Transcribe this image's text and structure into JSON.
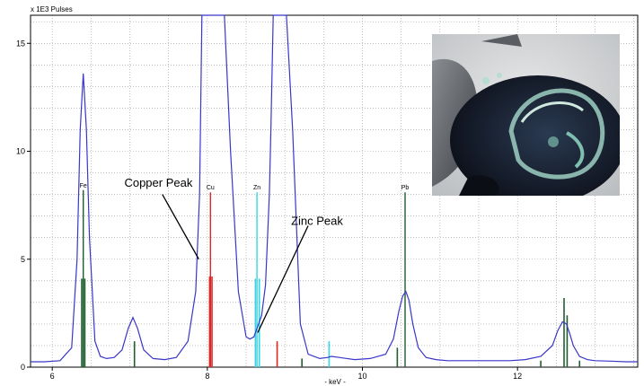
{
  "chart_data": {
    "type": "line",
    "ylabel": "x 1E3 Pulses",
    "xlabel": "- keV -",
    "xlim": [
      5.72,
      13.55
    ],
    "ylim": [
      0,
      16.3
    ],
    "x_ticks": [
      6,
      8,
      10,
      12
    ],
    "y_ticks": [
      0,
      5,
      10,
      15
    ],
    "series": [
      {
        "color": "#3a36c8",
        "x": [
          5.72,
          5.9,
          6.1,
          6.25,
          6.32,
          6.36,
          6.4,
          6.44,
          6.48,
          6.55,
          6.62,
          6.7,
          6.8,
          6.9,
          6.98,
          7.04,
          7.1,
          7.18,
          7.3,
          7.45,
          7.6,
          7.75,
          7.85,
          7.9,
          7.93,
          8.0,
          8.2,
          8.22,
          8.3,
          8.4,
          8.5,
          8.55,
          8.6,
          8.65,
          8.7,
          8.75,
          8.8,
          8.82,
          8.85,
          9.02,
          9.1,
          9.15,
          9.2,
          9.3,
          9.45,
          9.55,
          9.6,
          9.7,
          9.9,
          10.1,
          10.3,
          10.4,
          10.47,
          10.52,
          10.56,
          10.6,
          10.65,
          10.72,
          10.82,
          10.95,
          11.1,
          11.3,
          11.5,
          11.7,
          11.9,
          12.1,
          12.3,
          12.45,
          12.52,
          12.58,
          12.63,
          12.67,
          12.72,
          12.8,
          12.9,
          13.0,
          13.2,
          13.4,
          13.55
        ],
        "y": [
          0.25,
          0.25,
          0.3,
          0.9,
          5.0,
          11.0,
          13.6,
          11.0,
          6.0,
          1.2,
          0.5,
          0.4,
          0.45,
          0.8,
          1.8,
          2.3,
          1.8,
          0.8,
          0.4,
          0.35,
          0.45,
          1.2,
          3.5,
          8.0,
          16.3,
          16.3,
          16.3,
          16.3,
          10.0,
          3.5,
          1.4,
          1.3,
          1.4,
          1.9,
          2.4,
          3.8,
          8.0,
          11.0,
          16.3,
          16.3,
          11.0,
          6.5,
          2.0,
          0.6,
          0.4,
          0.45,
          0.5,
          0.45,
          0.35,
          0.4,
          0.6,
          1.3,
          2.6,
          3.3,
          3.5,
          3.1,
          2.0,
          0.9,
          0.45,
          0.35,
          0.3,
          0.3,
          0.3,
          0.3,
          0.3,
          0.35,
          0.5,
          1.0,
          1.7,
          2.1,
          2.0,
          1.6,
          1.0,
          0.5,
          0.35,
          0.3,
          0.28,
          0.25,
          0.25
        ]
      }
    ],
    "element_lines": [
      {
        "label": "Fe",
        "x": 6.4,
        "height": 8.2,
        "color": "#1f5e2e"
      },
      {
        "label": "Cu",
        "x": 8.04,
        "height": 8.1,
        "color": "#e02525"
      },
      {
        "label": "Zn",
        "x": 8.64,
        "height": 8.1,
        "color": "#35d6e6"
      },
      {
        "label": "Pb",
        "x": 10.55,
        "height": 8.1,
        "color": "#1f5e2e"
      }
    ],
    "minor_lines": [
      {
        "x": 6.38,
        "height": 4.1,
        "color": "#1f5e2e"
      },
      {
        "x": 6.42,
        "height": 4.1,
        "color": "#1f5e2e"
      },
      {
        "x": 7.06,
        "height": 1.2,
        "color": "#1f5e2e"
      },
      {
        "x": 8.03,
        "height": 4.2,
        "color": "#e02525"
      },
      {
        "x": 8.06,
        "height": 4.2,
        "color": "#e02525"
      },
      {
        "x": 8.62,
        "height": 4.1,
        "color": "#35d6e6"
      },
      {
        "x": 8.67,
        "height": 4.1,
        "color": "#35d6e6"
      },
      {
        "x": 8.9,
        "height": 1.2,
        "color": "#e02525"
      },
      {
        "x": 9.22,
        "height": 0.4,
        "color": "#1f5e2e"
      },
      {
        "x": 9.57,
        "height": 1.2,
        "color": "#35d6e6"
      },
      {
        "x": 10.45,
        "height": 0.9,
        "color": "#1f5e2e"
      },
      {
        "x": 12.3,
        "height": 0.3,
        "color": "#1f5e2e"
      },
      {
        "x": 12.6,
        "height": 3.2,
        "color": "#1f5e2e"
      },
      {
        "x": 12.64,
        "height": 2.4,
        "color": "#1f5e2e"
      },
      {
        "x": 12.8,
        "height": 0.3,
        "color": "#1f5e2e"
      }
    ],
    "annotations": [
      {
        "text": "Copper Peak",
        "x": 6.93,
        "y": 8.35,
        "arrow_from": [
          7.42,
          8.0
        ],
        "arrow_to": [
          7.89,
          5.0
        ]
      },
      {
        "text": "Zinc Peak",
        "x": 9.08,
        "y": 6.6,
        "arrow_from": [
          9.3,
          6.55
        ],
        "arrow_to": [
          8.65,
          1.6
        ]
      }
    ],
    "grid": true
  }
}
